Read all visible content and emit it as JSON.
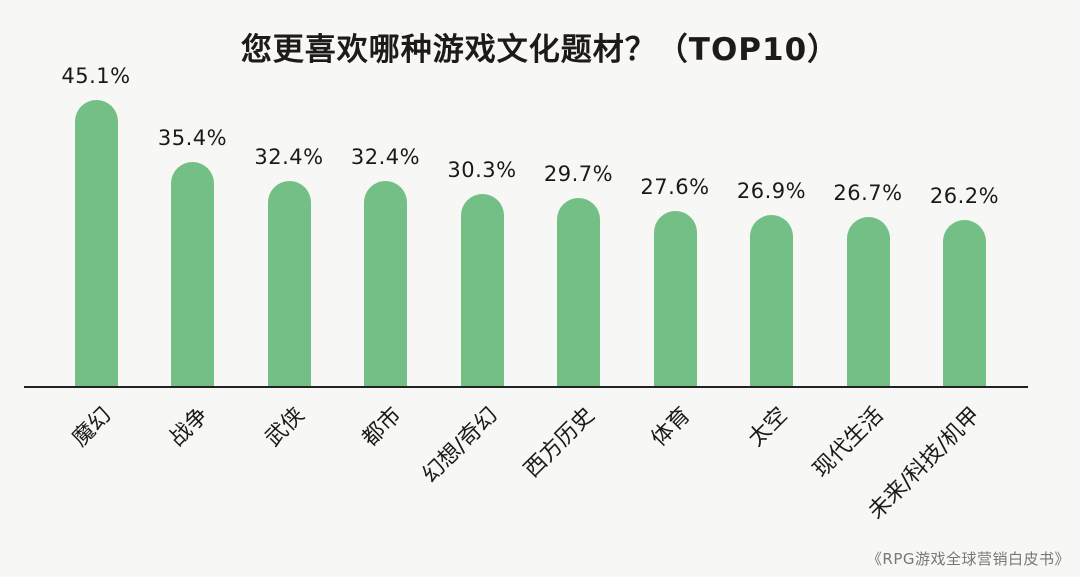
{
  "title": "您更喜欢哪种游戏文化题材？（TOP10）",
  "source": "《RPG游戏全球营销白皮书》",
  "colors": {
    "bar": "#74bf85",
    "background": "#f7f7f5",
    "axis": "#222222",
    "text": "#1a1a1a"
  },
  "chart_data": {
    "type": "bar",
    "title": "您更喜欢哪种游戏文化题材？（TOP10）",
    "xlabel": "",
    "ylabel": "",
    "ylim": [
      0,
      50
    ],
    "grid": false,
    "legend": "none",
    "categories": [
      "魔幻",
      "战争",
      "武侠",
      "都市",
      "幻想/奇幻",
      "西方历史",
      "体育",
      "太空",
      "现代生活",
      "未来/科技/机甲"
    ],
    "values": [
      45.1,
      35.4,
      32.4,
      32.4,
      30.3,
      29.7,
      27.6,
      26.9,
      26.7,
      26.2
    ],
    "value_labels": [
      "45.1%",
      "35.4%",
      "32.4%",
      "32.4%",
      "30.3%",
      "29.7%",
      "27.6%",
      "26.9%",
      "26.7%",
      "26.2%"
    ],
    "unit": "%",
    "source": "《RPG游戏全球营销白皮书》"
  }
}
